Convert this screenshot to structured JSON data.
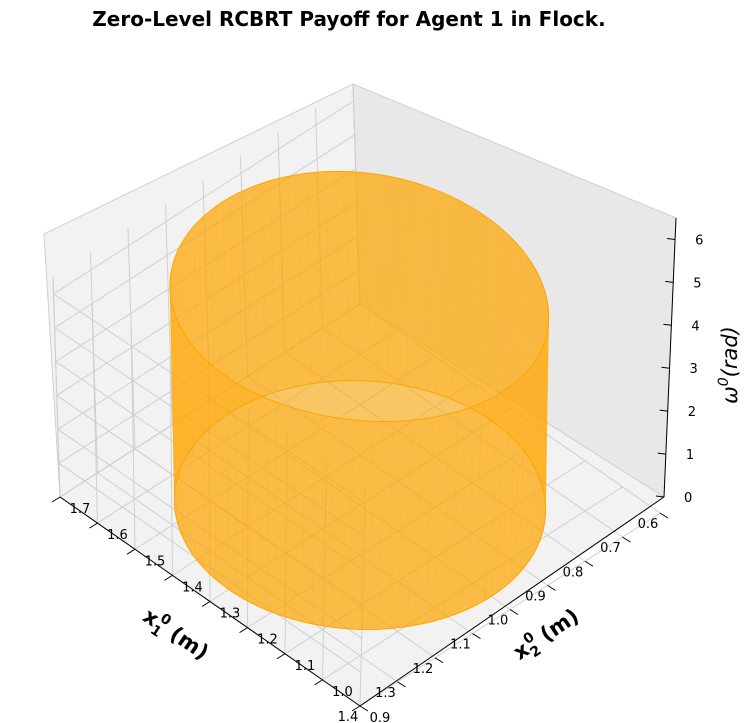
{
  "chart_data": {
    "type": "surface3d",
    "title": "Zero-Level RCBRT Payoff for Agent 1 in Flock.",
    "xlabel": {
      "base": "x",
      "sub": "1",
      "sup": "0",
      "unit": " (m)"
    },
    "ylabel": {
      "base": "x",
      "sub": "2",
      "sup": "0",
      "unit": " (m)"
    },
    "zlabel": {
      "base": "ω",
      "sup": "0",
      "unit": "(rad)"
    },
    "xlim": [
      0.6,
      1.4
    ],
    "ylim": [
      0.9,
      1.7
    ],
    "zlim": [
      0,
      6.5
    ],
    "x_ticks": [
      "0.6",
      "0.7",
      "0.8",
      "0.9",
      "1.0",
      "1.1",
      "1.2",
      "1.3",
      "1.4"
    ],
    "y_ticks": [
      "0.9",
      "1.0",
      "1.1",
      "1.2",
      "1.3",
      "1.4",
      "1.5",
      "1.6",
      "1.7"
    ],
    "z_ticks": [
      "0",
      "1",
      "2",
      "3",
      "4",
      "5",
      "6"
    ],
    "grid": true,
    "surface": {
      "shape": "cylinder",
      "center": [
        1.0,
        1.3
      ],
      "radius": 0.35,
      "z_range": [
        0,
        6.28
      ],
      "color": "#FFA500"
    }
  }
}
